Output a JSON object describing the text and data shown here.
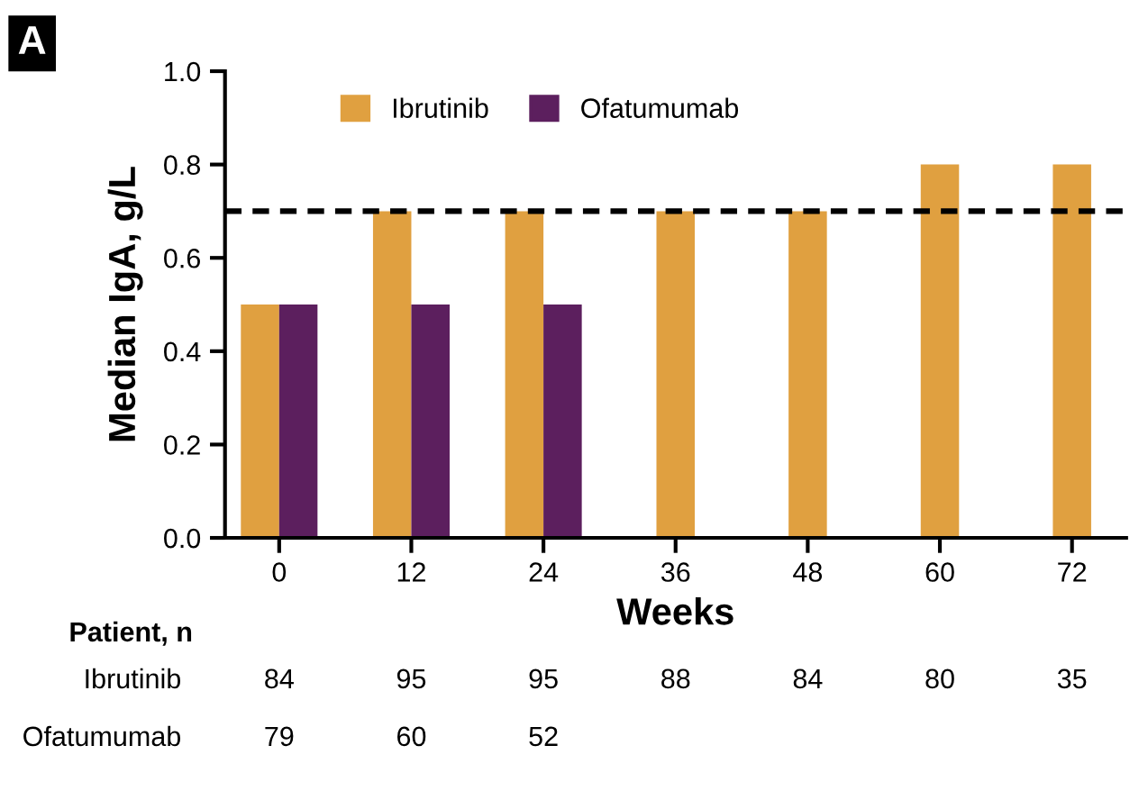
{
  "chart_data": {
    "type": "bar",
    "categories": [
      "0",
      "12",
      "24",
      "36",
      "48",
      "60",
      "72"
    ],
    "series": [
      {
        "name": "Ibrutinib",
        "color": "#e0a040",
        "values": [
          0.5,
          0.7,
          0.7,
          0.7,
          0.7,
          0.8,
          0.8
        ]
      },
      {
        "name": "Ofatumumab",
        "color": "#5c1f5e",
        "values": [
          0.5,
          0.5,
          0.5,
          null,
          null,
          null,
          null
        ]
      }
    ],
    "xlabel": "Weeks",
    "ylabel": "Median IgA, g/L",
    "ylim": [
      0,
      1.0
    ],
    "yticks": [
      {
        "value": 0,
        "label": "0.0"
      },
      0.2,
      0.4,
      0.6,
      0.8,
      {
        "value": 1.0,
        "label": "1.0"
      }
    ],
    "ref_lines": [
      {
        "axis": "y",
        "value": 0.7,
        "color": "#000000",
        "line_style": "dashed"
      }
    ],
    "legend": "top",
    "annotations": [
      "A",
      "Patient, n",
      "Ibrutinib",
      "84",
      "95",
      "95",
      "88",
      "84",
      "80",
      "35",
      "Ofatumumab",
      "79",
      "60",
      "52"
    ]
  }
}
